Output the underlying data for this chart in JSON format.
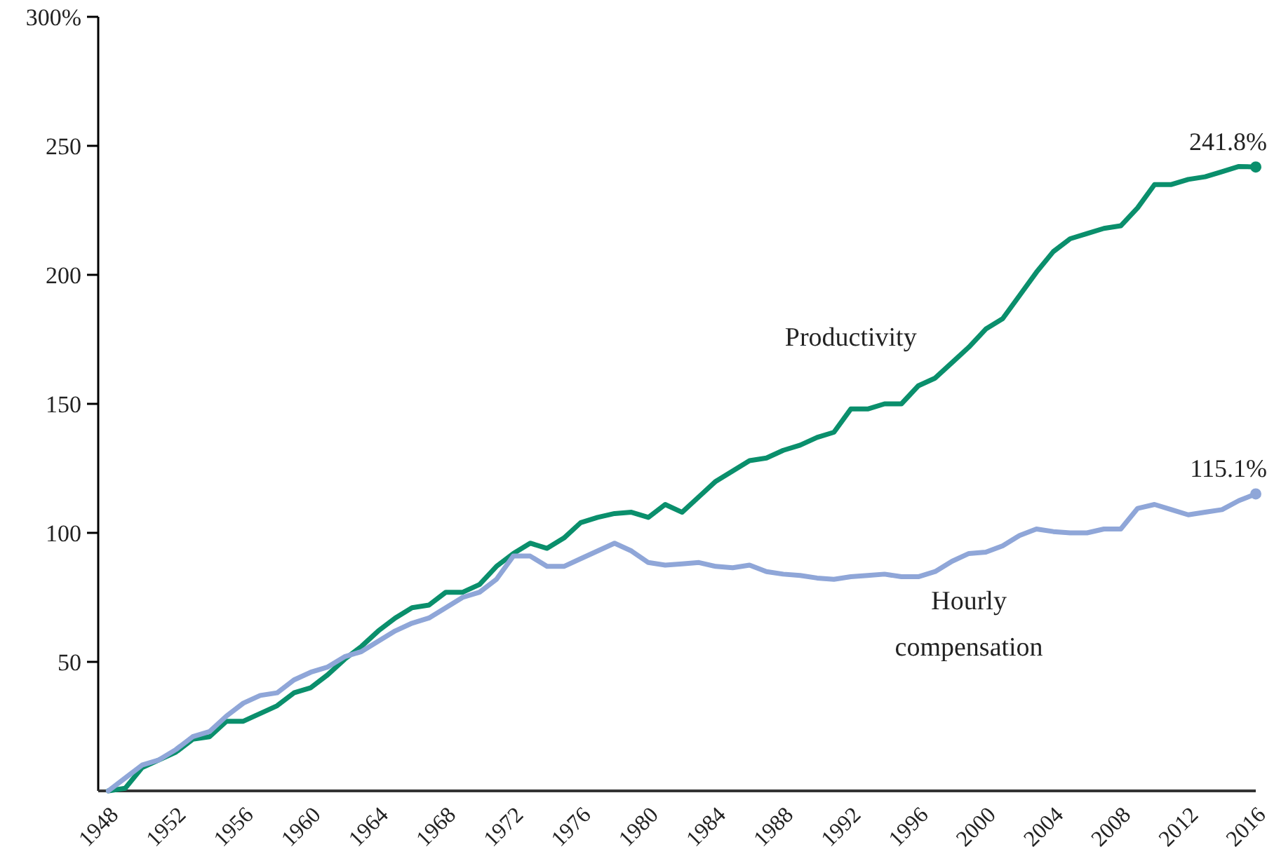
{
  "chart_data": {
    "type": "line",
    "x": [
      1948,
      1949,
      1950,
      1951,
      1952,
      1953,
      1954,
      1955,
      1956,
      1957,
      1958,
      1959,
      1960,
      1961,
      1962,
      1963,
      1964,
      1965,
      1966,
      1967,
      1968,
      1969,
      1970,
      1971,
      1972,
      1973,
      1974,
      1975,
      1976,
      1977,
      1978,
      1979,
      1980,
      1981,
      1982,
      1983,
      1984,
      1985,
      1986,
      1987,
      1988,
      1989,
      1990,
      1991,
      1992,
      1993,
      1994,
      1995,
      1996,
      1997,
      1998,
      1999,
      2000,
      2001,
      2002,
      2003,
      2004,
      2005,
      2006,
      2007,
      2008,
      2009,
      2010,
      2011,
      2012,
      2013,
      2014,
      2015,
      2016
    ],
    "series": [
      {
        "name": "Productivity",
        "color": "#0a8f6c",
        "values": [
          0,
          1,
          9,
          12,
          15,
          20,
          21,
          27,
          27,
          30,
          33,
          38,
          40,
          45,
          51,
          56,
          62,
          67,
          71,
          72,
          77,
          77,
          80,
          87,
          92,
          96,
          94,
          98,
          104,
          106,
          107.5,
          108,
          106,
          111,
          108,
          114,
          120,
          124,
          128,
          129,
          132,
          134,
          137,
          139,
          148,
          148,
          150,
          150,
          157,
          160,
          166,
          172,
          179,
          183,
          192,
          201,
          209,
          214,
          216,
          218,
          219,
          226,
          235,
          235,
          237,
          238,
          240,
          242,
          241.8
        ]
      },
      {
        "name": "Hourly compensation",
        "color": "#8fa6d8",
        "values": [
          0,
          5,
          10,
          12,
          16,
          21,
          23,
          29,
          34,
          37,
          38,
          43,
          46,
          48,
          52,
          54,
          58,
          62,
          65,
          67,
          71,
          75,
          77,
          82,
          91,
          91,
          87,
          87,
          90,
          93,
          96,
          93,
          88.5,
          87.5,
          88,
          88.5,
          87,
          86.5,
          87.5,
          85,
          84,
          83.5,
          82.5,
          82,
          83,
          83.5,
          84,
          83,
          83,
          85,
          89,
          92,
          92.5,
          95,
          99,
          101.5,
          100.5,
          100,
          100,
          101.5,
          101.5,
          109.5,
          111,
          109,
          107,
          108,
          109,
          112.5,
          115.1
        ]
      }
    ],
    "xlim": [
      1947.4,
      2016
    ],
    "xticks": [
      1948,
      1952,
      1956,
      1960,
      1964,
      1968,
      1972,
      1976,
      1980,
      1984,
      1988,
      1992,
      1996,
      2000,
      2004,
      2008,
      2012,
      2016
    ],
    "ylim": [
      0,
      300
    ],
    "yticks": [
      50,
      100,
      150,
      200,
      250,
      {
        "value": 300,
        "label": "300%"
      }
    ],
    "annotations": [
      {
        "text": "241.8%",
        "x": 2016,
        "y": 241.8
      },
      {
        "text": "115.1%",
        "x": 2016,
        "y": 115.1
      }
    ],
    "grid": false,
    "legend": false,
    "marker": "none",
    "line_style": "solid"
  }
}
